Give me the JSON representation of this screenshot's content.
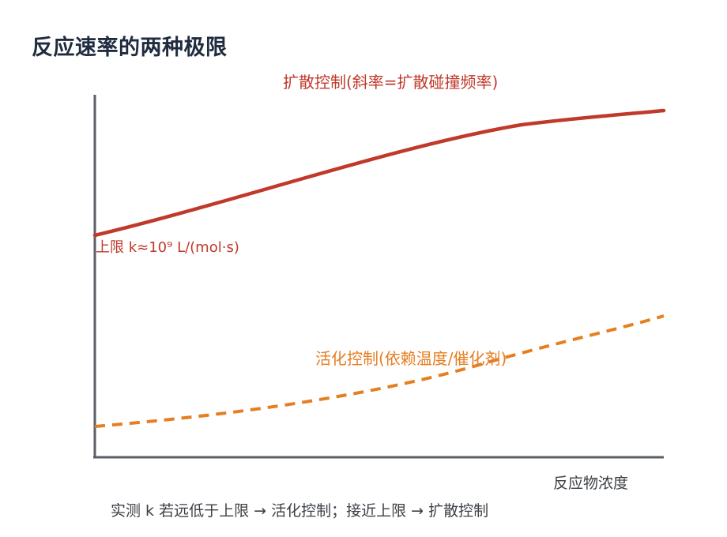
{
  "title": "反应速率的两种极限",
  "labels": {
    "diffusion": "扩散控制(斜率=扩散碰撞频率)",
    "upper_limit": "上限 k≈10⁹ L/(mol·s)",
    "activation": "活化控制(依赖温度/催化剂)",
    "x_axis": "反应物浓度"
  },
  "note": "实测 k 若远低于上限 → 活化控制；接近上限 → 扩散控制",
  "colors": {
    "diffusion": "#c0392b",
    "activation": "#e67e22",
    "axis": "#5a5f66",
    "title": "#1f2b3e"
  }
}
